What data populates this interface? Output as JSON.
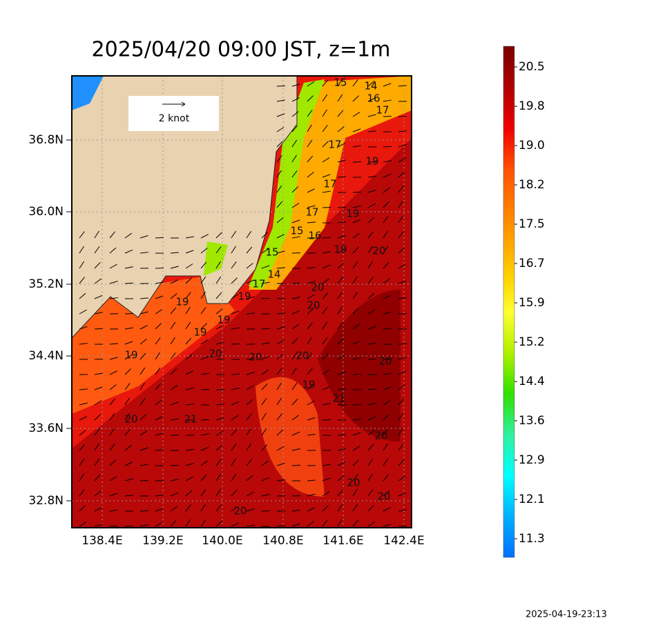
{
  "title": "2025/04/20 09:00 JST, z=1m",
  "lat_ticks": [
    "36.8N",
    "36.0N",
    "35.2N",
    "34.4N",
    "33.6N",
    "32.8N"
  ],
  "lon_ticks": [
    "138.4E",
    "139.2E",
    "140.0E",
    "140.8E",
    "141.6E",
    "142.4E"
  ],
  "colorbar_labels": [
    "20.5",
    "19.8",
    "19.0",
    "18.2",
    "17.5",
    "16.7",
    "15.9",
    "15.2",
    "14.4",
    "13.6",
    "12.9",
    "12.1",
    "11.3"
  ],
  "vector_legend": "2 knot",
  "timestamp": "2025-04-19-23:13",
  "contour_labels": [
    "15",
    "14",
    "16",
    "17",
    "17",
    "19",
    "17",
    "17",
    "19",
    "15",
    "16",
    "15",
    "19",
    "20",
    "14",
    "17",
    "19",
    "20",
    "20",
    "19",
    "19",
    "19",
    "19",
    "20",
    "20",
    "20",
    "19",
    "21",
    "20",
    "20",
    "21",
    "20",
    "20",
    "20",
    "20"
  ]
}
